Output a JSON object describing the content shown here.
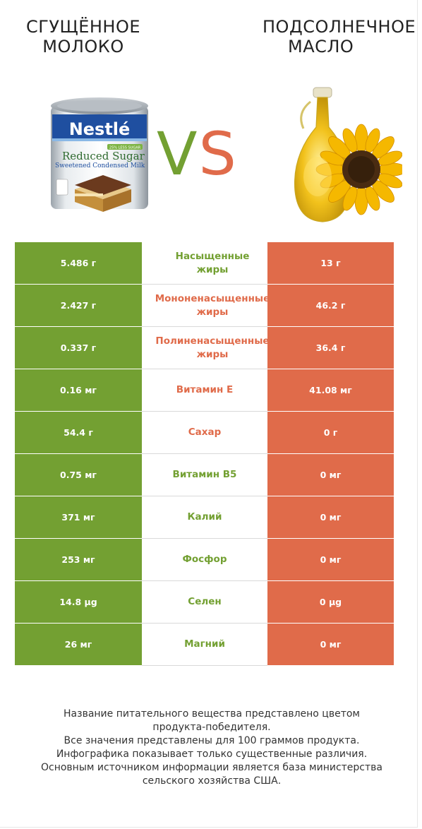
{
  "left_product": {
    "line1": "СГУЩЁННОЕ",
    "line2": "МОЛОКО",
    "color": "#73a032",
    "can_label": {
      "brand": "Nestlé",
      "badge": "25% LESS SUGAR",
      "name1": "Reduced Sugar",
      "name2": "Sweetened Condensed Milk"
    }
  },
  "right_product": {
    "line1": "ПОДСОЛНЕЧНОЕ",
    "line2": "МАСЛО",
    "color": "#e06b4a"
  },
  "vs": {
    "v": "V",
    "s": "S"
  },
  "rows": [
    {
      "left": "5.486 г",
      "label": "Насыщенные жиры",
      "label1": "Насыщенные",
      "label2": "жиры",
      "right": "13 г",
      "winner": "left"
    },
    {
      "left": "2.427 г",
      "label": "Мононенасыщенные жиры",
      "label1": "Мононенасыщенные",
      "label2": "жиры",
      "right": "46.2 г",
      "winner": "right"
    },
    {
      "left": "0.337 г",
      "label": "Полиненасыщенные жиры",
      "label1": "Полиненасыщенные",
      "label2": "жиры",
      "right": "36.4 г",
      "winner": "right"
    },
    {
      "left": "0.16 мг",
      "label": "Витамин E",
      "right": "41.08 мг",
      "winner": "right"
    },
    {
      "left": "54.4 г",
      "label": "Сахар",
      "right": "0 г",
      "winner": "right"
    },
    {
      "left": "0.75 мг",
      "label": "Витамин B5",
      "right": "0 мг",
      "winner": "left"
    },
    {
      "left": "371 мг",
      "label": "Калий",
      "right": "0 мг",
      "winner": "left"
    },
    {
      "left": "253 мг",
      "label": "Фосфор",
      "right": "0 мг",
      "winner": "left"
    },
    {
      "left": "14.8 µg",
      "label": "Селен",
      "right": "0 µg",
      "winner": "left"
    },
    {
      "left": "26 мг",
      "label": "Магний",
      "right": "0 мг",
      "winner": "left"
    }
  ],
  "footer": [
    "Название питательного вещества представлено цветом",
    "продукта-победителя.",
    "Все значения представлены для 100 граммов продукта.",
    "Инфографика показывает только существенные различия.",
    "Основным источником информации является база министерства",
    "сельского хозяйства США."
  ]
}
